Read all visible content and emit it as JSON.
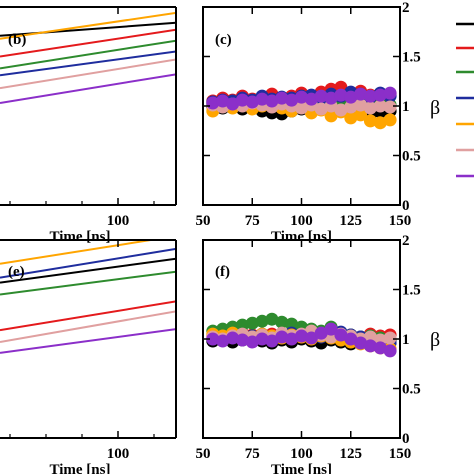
{
  "colors": [
    "#000000",
    "#e41a1c",
    "#2e8b2e",
    "#1f2d9e",
    "#ffa500",
    "#e0a0a0",
    "#8b2fc9"
  ],
  "chart_data": [
    {
      "id": "b",
      "type": "line",
      "panel_label": "(b)",
      "xlabel": "Time [ns]",
      "xticks": [
        100
      ],
      "xlim": [
        55,
        140
      ],
      "ylim": [
        0,
        10
      ],
      "series": [
        {
          "x": [
            55,
            140
          ],
          "y": [
            8.55,
            9.2
          ]
        },
        {
          "x": [
            55,
            140
          ],
          "y": [
            7.5,
            8.85
          ]
        },
        {
          "x": [
            55,
            140
          ],
          "y": [
            6.9,
            8.3
          ]
        },
        {
          "x": [
            55,
            140
          ],
          "y": [
            6.55,
            7.75
          ]
        },
        {
          "x": [
            55,
            140
          ],
          "y": [
            8.4,
            9.7
          ]
        },
        {
          "x": [
            55,
            140
          ],
          "y": [
            5.9,
            7.35
          ]
        },
        {
          "x": [
            55,
            140
          ],
          "y": [
            5.15,
            6.6
          ]
        }
      ]
    },
    {
      "id": "c",
      "type": "scatter",
      "panel_label": "(c)",
      "xlabel": "Time [ns]",
      "ylabel": "β",
      "xticks": [
        50,
        75,
        100,
        125,
        150
      ],
      "yticks": [
        0,
        0.5,
        1,
        1.5,
        2
      ],
      "ytick_labels": [
        "0",
        "0.5",
        "1",
        "1.5",
        "2"
      ],
      "xlim": [
        50,
        150
      ],
      "ylim": [
        0,
        2
      ],
      "series": [
        {
          "x": [
            55,
            60,
            65,
            70,
            75,
            80,
            85,
            90,
            95,
            100,
            105,
            110,
            115,
            120,
            125,
            130,
            135,
            140,
            145
          ],
          "y": [
            1.0,
            0.98,
            1.01,
            0.97,
            0.99,
            0.95,
            0.93,
            0.92,
            0.95,
            0.97,
            0.96,
            0.98,
            0.95,
            0.97,
            0.94,
            0.96,
            0.92,
            0.94,
            0.95
          ]
        },
        {
          "x": [
            55,
            60,
            65,
            70,
            75,
            80,
            85,
            90,
            95,
            100,
            105,
            110,
            115,
            120,
            125,
            130,
            135,
            140,
            145
          ],
          "y": [
            1.05,
            1.08,
            1.06,
            1.1,
            1.07,
            1.09,
            1.12,
            1.08,
            1.1,
            1.13,
            1.09,
            1.14,
            1.17,
            1.19,
            1.12,
            1.15,
            1.11,
            1.1,
            1.12
          ]
        },
        {
          "x": [
            55,
            60,
            65,
            70,
            75,
            80,
            85,
            90,
            95,
            100,
            105,
            110,
            115,
            120,
            125,
            130,
            135,
            140,
            145
          ],
          "y": [
            1.02,
            1.0,
            1.03,
            1.01,
            1.04,
            1.02,
            1.0,
            1.03,
            1.05,
            1.02,
            1.04,
            1.01,
            1.03,
            1.0,
            1.02,
            1.04,
            1.03,
            1.02,
            1.01
          ]
        },
        {
          "x": [
            55,
            60,
            65,
            70,
            75,
            80,
            85,
            90,
            95,
            100,
            105,
            110,
            115,
            120,
            125,
            130,
            135,
            140,
            145
          ],
          "y": [
            1.04,
            1.06,
            1.05,
            1.08,
            1.06,
            1.1,
            1.07,
            1.09,
            1.08,
            1.1,
            1.11,
            1.08,
            1.12,
            1.1,
            1.14,
            1.12,
            1.09,
            1.13,
            1.1
          ]
        },
        {
          "x": [
            55,
            60,
            65,
            70,
            75,
            80,
            85,
            90,
            95,
            100,
            105,
            110,
            115,
            120,
            125,
            130,
            135,
            140,
            145
          ],
          "y": [
            0.95,
            1.0,
            0.98,
            1.02,
            0.97,
            1.0,
            1.01,
            0.98,
            0.95,
            0.99,
            0.93,
            0.96,
            0.9,
            0.94,
            0.88,
            0.91,
            0.85,
            0.83,
            0.86
          ]
        },
        {
          "x": [
            55,
            60,
            65,
            70,
            75,
            80,
            85,
            90,
            95,
            100,
            105,
            110,
            115,
            120,
            125,
            130,
            135,
            140,
            145
          ],
          "y": [
            1.01,
            0.99,
            1.02,
            1.0,
            1.03,
            1.01,
            0.99,
            1.02,
            1.0,
            0.98,
            1.01,
            0.97,
            1.0,
            0.96,
            0.99,
            1.01,
            0.98,
            1.0,
            0.99
          ]
        },
        {
          "x": [
            55,
            60,
            65,
            70,
            75,
            80,
            85,
            90,
            95,
            100,
            105,
            110,
            115,
            120,
            125,
            130,
            135,
            140,
            145
          ],
          "y": [
            1.03,
            1.05,
            1.02,
            1.06,
            1.04,
            1.07,
            1.05,
            1.08,
            1.06,
            1.09,
            1.07,
            1.1,
            1.08,
            1.11,
            1.09,
            1.12,
            1.1,
            1.11,
            1.13
          ]
        }
      ]
    },
    {
      "id": "e",
      "type": "line",
      "panel_label": "(e)",
      "xlabel": "Time [ns]",
      "xticks": [
        100
      ],
      "xlim": [
        55,
        140
      ],
      "ylim": [
        0,
        10
      ],
      "series": [
        {
          "x": [
            55,
            140
          ],
          "y": [
            7.85,
            9.05
          ]
        },
        {
          "x": [
            55,
            140
          ],
          "y": [
            5.45,
            6.9
          ]
        },
        {
          "x": [
            55,
            140
          ],
          "y": [
            7.25,
            8.4
          ]
        },
        {
          "x": [
            55,
            140
          ],
          "y": [
            8.1,
            9.55
          ]
        },
        {
          "x": [
            55,
            140
          ],
          "y": [
            8.8,
            10.2
          ]
        },
        {
          "x": [
            55,
            140
          ],
          "y": [
            4.85,
            6.4
          ]
        },
        {
          "x": [
            55,
            140
          ],
          "y": [
            4.3,
            5.5
          ]
        }
      ]
    },
    {
      "id": "f",
      "type": "scatter",
      "panel_label": "(f)",
      "xlabel": "Time [ns]",
      "ylabel": "β",
      "xticks": [
        50,
        75,
        100,
        125,
        150
      ],
      "yticks": [
        0,
        0.5,
        1,
        1.5,
        2
      ],
      "ytick_labels": [
        "0",
        "0.5",
        "1",
        "1.5",
        "2"
      ],
      "xlim": [
        50,
        150
      ],
      "ylim": [
        0,
        2
      ],
      "series": [
        {
          "x": [
            55,
            60,
            65,
            70,
            75,
            80,
            85,
            90,
            95,
            100,
            105,
            110,
            115,
            120,
            125,
            130,
            135,
            140,
            145
          ],
          "y": [
            0.98,
            1.0,
            0.97,
            0.99,
            1.0,
            0.98,
            0.96,
            0.99,
            0.97,
            1.0,
            0.98,
            0.96,
            0.99,
            0.97,
            0.95,
            0.98,
            0.96,
            0.97,
            0.99
          ]
        },
        {
          "x": [
            55,
            60,
            65,
            70,
            75,
            80,
            85,
            90,
            95,
            100,
            105,
            110,
            115,
            120,
            125,
            130,
            135,
            140,
            145
          ],
          "y": [
            1.03,
            1.05,
            1.02,
            1.06,
            1.04,
            1.02,
            1.05,
            1.03,
            1.06,
            1.04,
            1.07,
            1.05,
            1.03,
            1.06,
            1.04,
            1.02,
            1.05,
            1.03,
            1.04
          ]
        },
        {
          "x": [
            55,
            60,
            65,
            70,
            75,
            80,
            85,
            90,
            95,
            100,
            105,
            110,
            115,
            120,
            125,
            130,
            135,
            140,
            145
          ],
          "y": [
            1.08,
            1.1,
            1.12,
            1.14,
            1.16,
            1.18,
            1.2,
            1.17,
            1.15,
            1.12,
            1.1,
            1.08,
            1.12,
            1.06,
            1.04,
            1.02,
            1.03,
            1.01,
            1.0
          ]
        },
        {
          "x": [
            55,
            60,
            65,
            70,
            75,
            80,
            85,
            90,
            95,
            100,
            105,
            110,
            115,
            120,
            125,
            130,
            135,
            140,
            145
          ],
          "y": [
            1.0,
            1.02,
            1.04,
            1.01,
            1.03,
            1.05,
            1.02,
            1.04,
            1.06,
            1.03,
            1.05,
            1.02,
            1.04,
            1.07,
            1.04,
            1.02,
            1.0,
            0.98,
            0.96
          ]
        },
        {
          "x": [
            55,
            60,
            65,
            70,
            75,
            80,
            85,
            90,
            95,
            100,
            105,
            110,
            115,
            120,
            125,
            130,
            135,
            140,
            145
          ],
          "y": [
            1.05,
            1.03,
            1.06,
            1.04,
            1.02,
            1.05,
            1.03,
            1.01,
            1.04,
            1.02,
            1.0,
            1.03,
            1.01,
            0.99,
            0.97,
            0.95,
            0.93,
            0.91,
            0.9
          ]
        },
        {
          "x": [
            55,
            60,
            65,
            70,
            75,
            80,
            85,
            90,
            95,
            100,
            105,
            110,
            115,
            120,
            125,
            130,
            135,
            140,
            145
          ],
          "y": [
            1.02,
            1.0,
            1.03,
            1.05,
            1.02,
            1.04,
            1.01,
            1.06,
            1.03,
            1.05,
            1.08,
            1.04,
            1.02,
            1.05,
            1.03,
            1.0,
            1.02,
            0.99,
            1.01
          ]
        },
        {
          "x": [
            55,
            60,
            65,
            70,
            75,
            80,
            85,
            90,
            95,
            100,
            105,
            110,
            115,
            120,
            125,
            130,
            135,
            140,
            145
          ],
          "y": [
            1.0,
            0.98,
            1.01,
            0.99,
            0.97,
            1.0,
            0.98,
            1.02,
            1.0,
            1.03,
            1.01,
            1.06,
            1.1,
            1.04,
            1.0,
            0.96,
            0.93,
            0.91,
            0.88
          ]
        }
      ]
    }
  ]
}
